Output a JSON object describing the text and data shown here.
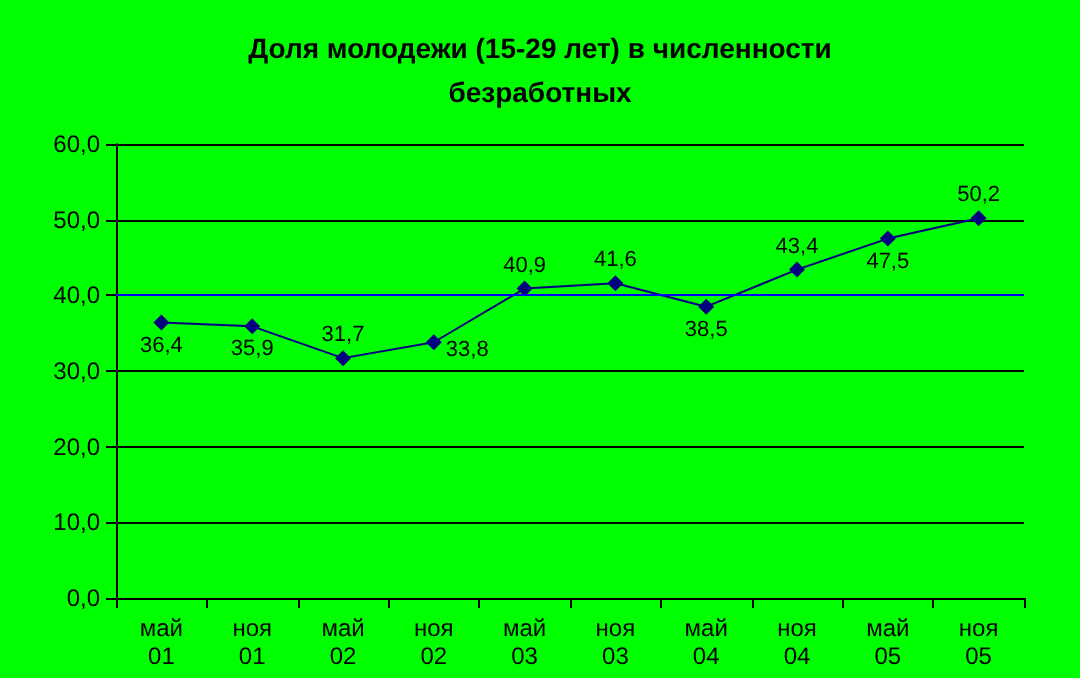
{
  "chart_data": {
    "type": "line",
    "title": "Доля молодежи (15-29 лет) в численности\nбезработных",
    "categories": [
      "май\n01",
      "ноя\n01",
      "май\n02",
      "ноя\n02",
      "май\n03",
      "ноя\n03",
      "май\n04",
      "ноя\n04",
      "май\n05",
      "ноя\n05"
    ],
    "series": [
      {
        "color": "#000080",
        "values": [
          36.4,
          35.9,
          31.7,
          33.8,
          40.9,
          41.6,
          38.5,
          43.4,
          47.5,
          50.2
        ],
        "value_labels": [
          "36,4",
          "35,9",
          "31,7",
          "33,8",
          "40,9",
          "41,6",
          "38,5",
          "43,4",
          "47,5",
          "50,2"
        ]
      }
    ],
    "ylim": [
      0,
      60
    ],
    "yticks": [
      {
        "value": 0,
        "label": "0,0"
      },
      {
        "value": 10,
        "label": "10,0"
      },
      {
        "value": 20,
        "label": "20,0"
      },
      {
        "value": 30,
        "label": "30,0"
      },
      {
        "value": 40,
        "label": "40,0"
      },
      {
        "value": 50,
        "label": "50,0"
      },
      {
        "value": 60,
        "label": "60,0"
      }
    ],
    "ref_lines": [
      {
        "axis": "y",
        "value": 40,
        "color": "#0000ff"
      }
    ],
    "grid": "y",
    "marker": "diamond",
    "line_style": "solid"
  }
}
